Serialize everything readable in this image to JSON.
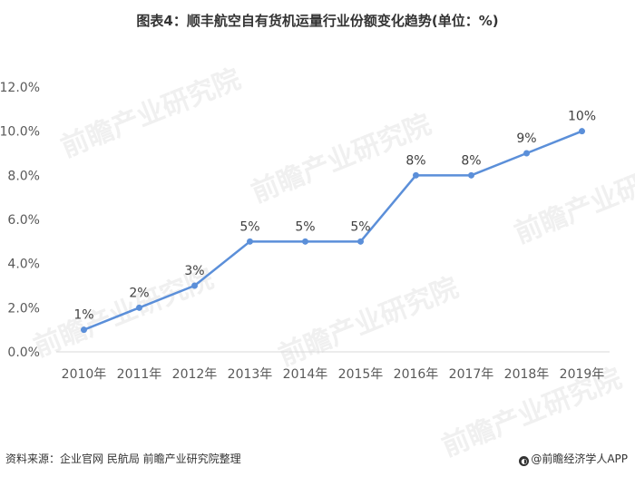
{
  "title": "图表4：顺丰航空自有货机运量行业份额变化趋势(单位：%)",
  "footer": {
    "source": "资料来源：企业官网 民航局 前瞻产业研究院整理",
    "brand": "@前瞻经济学人APP",
    "brand_icon": "qianzhan-logo-icon"
  },
  "watermark": "前瞻产业研究院",
  "colors": {
    "line": "#5b8fd9",
    "axis": "#d9d9d9",
    "text": "#595959"
  },
  "chart_data": {
    "type": "line",
    "title": "图表4：顺丰航空自有货机运量行业份额变化趋势(单位：%)",
    "categories": [
      "2010年",
      "2011年",
      "2012年",
      "2013年",
      "2014年",
      "2015年",
      "2016年",
      "2017年",
      "2018年",
      "2019年"
    ],
    "series": [
      {
        "values": [
          1,
          2,
          3,
          5,
          5,
          5,
          8,
          8,
          9,
          10
        ],
        "labels": [
          "1%",
          "2%",
          "3%",
          "5%",
          "5%",
          "5%",
          "8%",
          "8%",
          "9%",
          "10%"
        ]
      }
    ],
    "yticks": [
      "0.0%",
      "2.0%",
      "4.0%",
      "6.0%",
      "8.0%",
      "10.0%",
      "12.0%"
    ],
    "ylim": [
      0,
      12
    ],
    "grid": false,
    "legend": "none"
  }
}
